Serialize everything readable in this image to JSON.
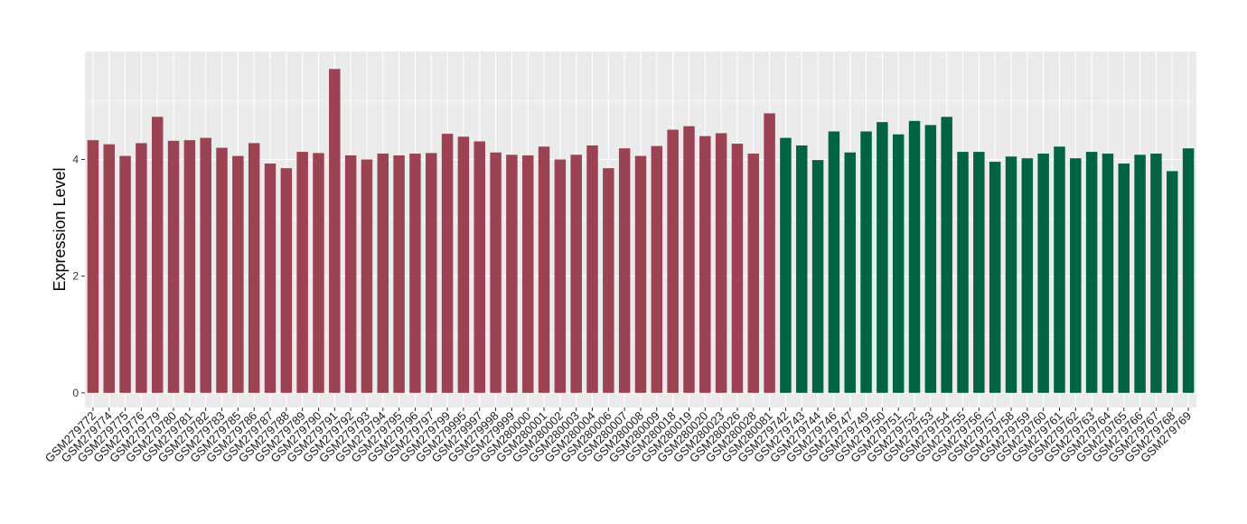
{
  "chart_data": {
    "type": "bar",
    "title": "",
    "xlabel": "",
    "ylabel": "Expression Level",
    "ylim": [
      -0.25,
      5.85
    ],
    "yticks": [
      0,
      2,
      4
    ],
    "grid": true,
    "legend": "none",
    "colors": {
      "group1": "#9b4352",
      "group2": "#006443",
      "panel": "#ebebeb",
      "grid": "#ffffff"
    },
    "categories": [
      "GSM279772",
      "GSM279774",
      "GSM279775",
      "GSM279776",
      "GSM279779",
      "GSM279780",
      "GSM279781",
      "GSM279782",
      "GSM279783",
      "GSM279785",
      "GSM279786",
      "GSM279787",
      "GSM279788",
      "GSM279789",
      "GSM279790",
      "GSM279791",
      "GSM279792",
      "GSM279793",
      "GSM279794",
      "GSM279795",
      "GSM279796",
      "GSM279797",
      "GSM279799",
      "GSM279995",
      "GSM279997",
      "GSM279998",
      "GSM279999",
      "GSM280000",
      "GSM280001",
      "GSM280002",
      "GSM280003",
      "GSM280004",
      "GSM280006",
      "GSM280007",
      "GSM280008",
      "GSM280009",
      "GSM280018",
      "GSM280019",
      "GSM280020",
      "GSM280023",
      "GSM280026",
      "GSM280028",
      "GSM280081",
      "GSM279742",
      "GSM279743",
      "GSM279744",
      "GSM279746",
      "GSM279747",
      "GSM279749",
      "GSM279750",
      "GSM279751",
      "GSM279752",
      "GSM279753",
      "GSM279754",
      "GSM279755",
      "GSM279756",
      "GSM279757",
      "GSM279758",
      "GSM279759",
      "GSM279760",
      "GSM279761",
      "GSM279762",
      "GSM279763",
      "GSM279764",
      "GSM279765",
      "GSM279766",
      "GSM279767",
      "GSM279768",
      "GSM279769"
    ],
    "values": [
      4.33,
      4.26,
      4.06,
      4.28,
      4.73,
      4.32,
      4.33,
      4.37,
      4.2,
      4.06,
      4.28,
      3.93,
      3.85,
      4.13,
      4.11,
      5.55,
      4.07,
      4.0,
      4.1,
      4.07,
      4.1,
      4.11,
      4.44,
      4.39,
      4.31,
      4.12,
      4.08,
      4.07,
      4.22,
      4.0,
      4.08,
      4.24,
      3.85,
      4.19,
      4.06,
      4.23,
      4.51,
      4.57,
      4.4,
      4.45,
      4.27,
      4.1,
      4.79,
      4.37,
      4.24,
      3.99,
      4.48,
      4.12,
      4.48,
      4.64,
      4.43,
      4.66,
      4.59,
      4.73,
      4.13,
      4.13,
      3.96,
      4.05,
      4.02,
      4.1,
      4.22,
      4.02,
      4.13,
      4.1,
      3.93,
      4.08,
      4.1,
      3.8,
      4.19
    ],
    "groups": [
      "group1",
      "group1",
      "group1",
      "group1",
      "group1",
      "group1",
      "group1",
      "group1",
      "group1",
      "group1",
      "group1",
      "group1",
      "group1",
      "group1",
      "group1",
      "group1",
      "group1",
      "group1",
      "group1",
      "group1",
      "group1",
      "group1",
      "group1",
      "group1",
      "group1",
      "group1",
      "group1",
      "group1",
      "group1",
      "group1",
      "group1",
      "group1",
      "group1",
      "group1",
      "group1",
      "group1",
      "group1",
      "group1",
      "group1",
      "group1",
      "group1",
      "group1",
      "group1",
      "group2",
      "group2",
      "group2",
      "group2",
      "group2",
      "group2",
      "group2",
      "group2",
      "group2",
      "group2",
      "group2",
      "group2",
      "group2",
      "group2",
      "group2",
      "group2",
      "group2",
      "group2",
      "group2",
      "group2",
      "group2",
      "group2",
      "group2",
      "group2",
      "group2",
      "group2"
    ]
  }
}
